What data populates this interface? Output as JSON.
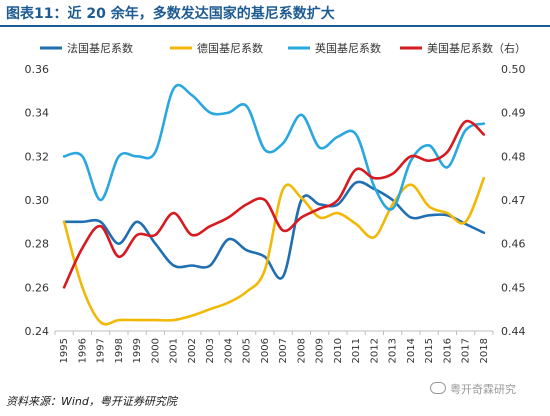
{
  "figure": {
    "title": "图表11：近 20 余年，多数发达国家的基尼系数扩大",
    "source": "资料来源：Wind，粤开证券研究院",
    "watermark": "粤开奇霖研究"
  },
  "chart_data": {
    "type": "line",
    "x": [
      "1995",
      "1996",
      "1997",
      "1998",
      "1999",
      "2000",
      "2001",
      "2002",
      "2003",
      "2004",
      "2005",
      "2006",
      "2007",
      "2008",
      "2009",
      "2010",
      "2011",
      "2012",
      "2013",
      "2014",
      "2015",
      "2016",
      "2017",
      "2018"
    ],
    "ylim": [
      0.24,
      0.36
    ],
    "y_ticks": [
      "0.24",
      "0.26",
      "0.28",
      "0.30",
      "0.32",
      "0.34",
      "0.36"
    ],
    "y2lim": [
      0.44,
      0.5
    ],
    "y2_ticks": [
      "0.44",
      "0.45",
      "0.46",
      "0.47",
      "0.48",
      "0.49",
      "0.50"
    ],
    "series": [
      {
        "name": "法国基尼系数",
        "axis": "left",
        "color": "#1f6fb2",
        "values": [
          0.29,
          0.29,
          0.29,
          0.28,
          0.29,
          0.28,
          0.27,
          0.27,
          0.27,
          0.282,
          0.277,
          0.274,
          0.265,
          0.3,
          0.298,
          0.298,
          0.308,
          0.305,
          0.3,
          0.292,
          0.293,
          0.293,
          0.289,
          0.285
        ]
      },
      {
        "name": "德国基尼系数",
        "axis": "left",
        "color": "#f2b807",
        "values": [
          0.29,
          0.26,
          0.244,
          0.245,
          0.245,
          0.245,
          0.245,
          0.247,
          0.25,
          0.253,
          0.258,
          0.268,
          0.305,
          0.301,
          0.292,
          0.294,
          0.289,
          0.283,
          0.298,
          0.307,
          0.297,
          0.294,
          0.29,
          0.31
        ]
      },
      {
        "name": "英国基尼系数",
        "axis": "left",
        "color": "#2aa7de",
        "values": [
          0.32,
          0.32,
          0.3,
          0.32,
          0.32,
          0.322,
          0.351,
          0.348,
          0.34,
          0.34,
          0.343,
          0.323,
          0.326,
          0.339,
          0.324,
          0.329,
          0.33,
          0.306,
          0.296,
          0.318,
          0.325,
          0.315,
          0.332,
          0.335
        ]
      },
      {
        "name": "美国基尼系数（右）",
        "axis": "right",
        "color": "#d71920",
        "values": [
          0.45,
          0.459,
          0.464,
          0.457,
          0.462,
          0.462,
          0.467,
          0.462,
          0.464,
          0.466,
          0.469,
          0.47,
          0.463,
          0.466,
          0.468,
          0.47,
          0.477,
          0.475,
          0.476,
          0.48,
          0.479,
          0.481,
          0.488,
          0.485
        ]
      }
    ]
  }
}
